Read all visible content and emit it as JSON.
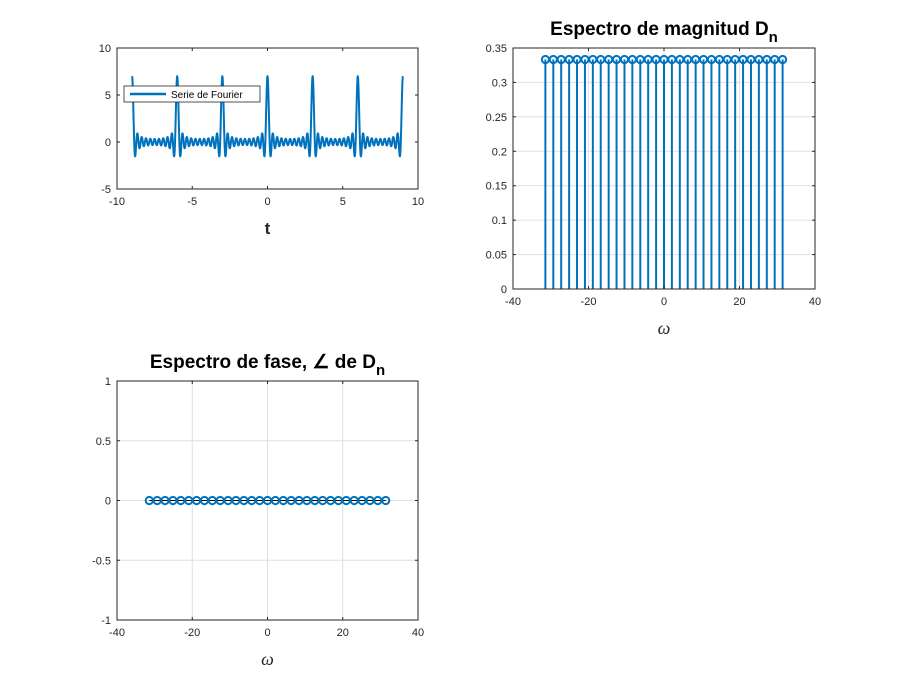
{
  "colors": {
    "series": "#0072BD",
    "axis": "#262626",
    "grid": "#dfdfdf",
    "zero_line": "#000000"
  },
  "chart_data": [
    {
      "id": "time",
      "type": "line",
      "title": "",
      "xlabel": "t",
      "ylabel": "",
      "xlim": [
        -10,
        10
      ],
      "ylim": [
        -5,
        10
      ],
      "xticks": [
        -10,
        -5,
        0,
        5,
        10
      ],
      "yticks": [
        -5,
        0,
        5,
        10
      ],
      "grid": false,
      "legend": {
        "placement": "top-left",
        "entries": [
          "Serie de Fourier"
        ]
      },
      "series": [
        {
          "name": "Serie de Fourier",
          "period": 3,
          "x_range": [
            -9,
            9
          ],
          "peak_positions": [
            -9,
            -6,
            -3,
            0,
            3,
            6,
            9
          ],
          "baseline": 0,
          "ripple_amplitude": 0.8,
          "min_near_peak": -2.2
        }
      ]
    },
    {
      "id": "magnitude",
      "type": "stem",
      "title": "Espectro de magnitud D",
      "title_subscript": "n",
      "xlabel": "ω",
      "ylabel": "",
      "xlim": [
        -40,
        40
      ],
      "ylim": [
        0,
        0.35
      ],
      "xticks": [
        -40,
        -20,
        0,
        20,
        40
      ],
      "yticks": [
        0,
        0.05,
        0.1,
        0.15,
        0.2,
        0.25,
        0.3,
        0.35
      ],
      "grid": true,
      "series": [
        {
          "x": [
            -31.42,
            -29.32,
            -27.23,
            -25.13,
            -23.04,
            -20.94,
            -18.85,
            -16.76,
            -14.66,
            -12.57,
            -10.47,
            -8.38,
            -6.28,
            -4.19,
            -2.09,
            0,
            2.09,
            4.19,
            6.28,
            8.38,
            10.47,
            12.57,
            14.66,
            16.76,
            18.85,
            20.94,
            23.04,
            25.13,
            27.23,
            29.32,
            31.42
          ],
          "y": [
            0.3333,
            0.3333,
            0.3333,
            0.3333,
            0.3333,
            0.3333,
            0.3333,
            0.3333,
            0.3333,
            0.3333,
            0.3333,
            0.3333,
            0.3333,
            0.3333,
            0.3333,
            0.3333,
            0.3333,
            0.3333,
            0.3333,
            0.3333,
            0.3333,
            0.3333,
            0.3333,
            0.3333,
            0.3333,
            0.3333,
            0.3333,
            0.3333,
            0.3333,
            0.3333,
            0.3333
          ]
        }
      ]
    },
    {
      "id": "phase",
      "type": "stem",
      "title": "Espectro de fase, ∠ de D",
      "title_subscript": "n",
      "xlabel": "ω",
      "ylabel": "",
      "xlim": [
        -40,
        40
      ],
      "ylim": [
        -1,
        1
      ],
      "xticks": [
        -40,
        -20,
        0,
        20,
        40
      ],
      "yticks": [
        -1,
        -0.5,
        0,
        0.5,
        1
      ],
      "grid": true,
      "series": [
        {
          "x": [
            -31.42,
            -29.32,
            -27.23,
            -25.13,
            -23.04,
            -20.94,
            -18.85,
            -16.76,
            -14.66,
            -12.57,
            -10.47,
            -8.38,
            -6.28,
            -4.19,
            -2.09,
            0,
            2.09,
            4.19,
            6.28,
            8.38,
            10.47,
            12.57,
            14.66,
            16.76,
            18.85,
            20.94,
            23.04,
            25.13,
            27.23,
            29.32,
            31.42
          ],
          "y": [
            0,
            0,
            0,
            0,
            0,
            0,
            0,
            0,
            0,
            0,
            0,
            0,
            0,
            0,
            0,
            0,
            0,
            0,
            0,
            0,
            0,
            0,
            0,
            0,
            0,
            0,
            0,
            0,
            0,
            0,
            0
          ]
        }
      ]
    }
  ]
}
